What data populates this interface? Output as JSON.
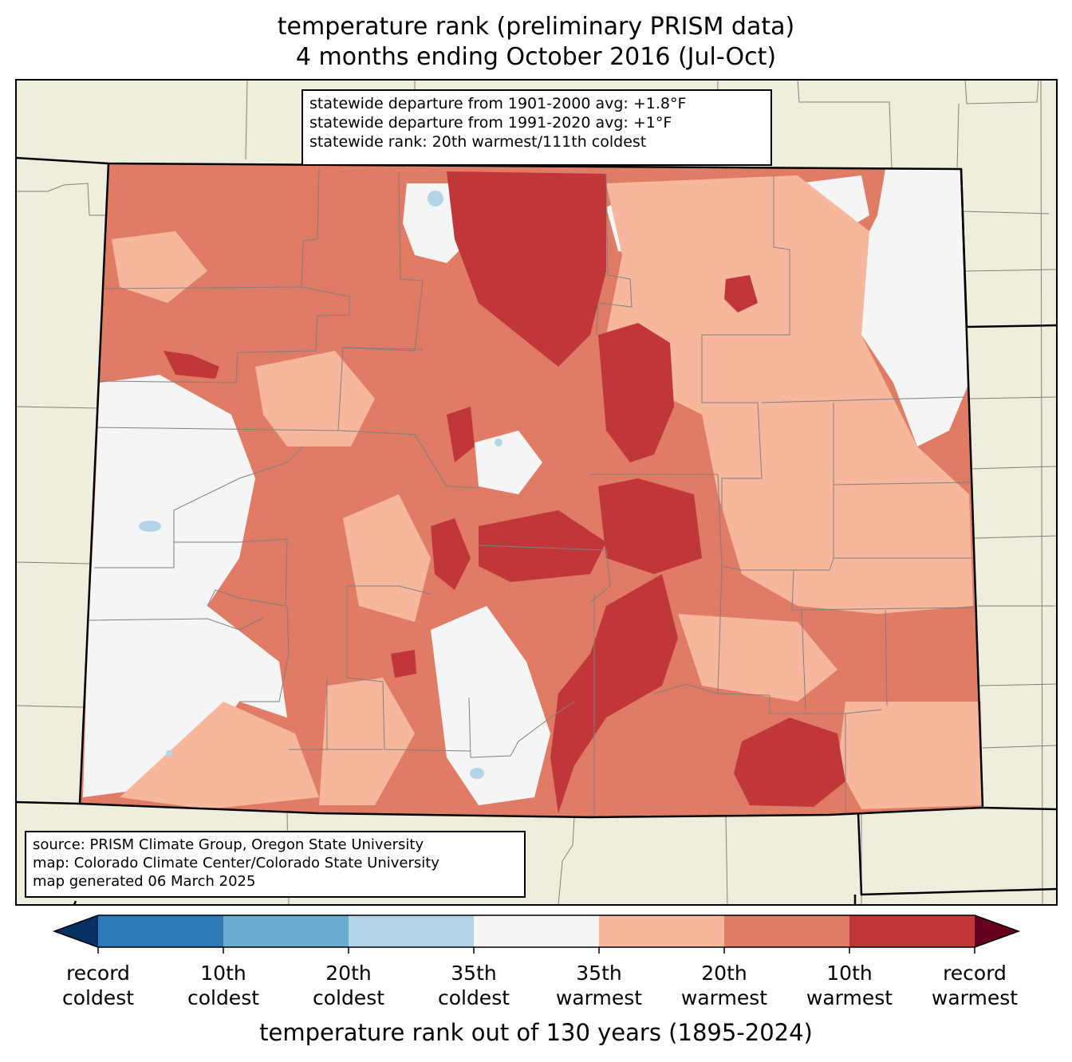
{
  "title": {
    "line1": "temperature rank (preliminary PRISM data)",
    "line2": "4 months ending October 2016 (Jul-Oct)"
  },
  "stats_box": {
    "line1": "statewide departure from 1901-2000 avg: +1.8°F",
    "line2": "statewide departure from 1991-2020 avg: +1°F",
    "line3": "statewide rank: 20th warmest/111th coldest"
  },
  "source_box": {
    "line1": "source: PRISM Climate Group, Oregon State University",
    "line2": "map: Colorado Climate Center/Colorado State University",
    "line3": "map generated 06 March 2025"
  },
  "colorbar": {
    "title": "temperature rank out of 130 years (1895-2024)",
    "bins": [
      {
        "color": "#053061"
      },
      {
        "color": "#2f79b5"
      },
      {
        "color": "#6aacd0"
      },
      {
        "color": "#b1d5e7"
      },
      {
        "color": "#f5f5f5"
      },
      {
        "color": "#f6b79c"
      },
      {
        "color": "#e07b65"
      },
      {
        "color": "#c13639"
      },
      {
        "color": "#67001f"
      }
    ],
    "ticks": [
      {
        "top": "record",
        "bottom": "coldest"
      },
      {
        "top": "10th",
        "bottom": "coldest"
      },
      {
        "top": "20th",
        "bottom": "coldest"
      },
      {
        "top": "35th",
        "bottom": "coldest"
      },
      {
        "top": "35th",
        "bottom": "warmest"
      },
      {
        "top": "20th",
        "bottom": "warmest"
      },
      {
        "top": "10th",
        "bottom": "warmest"
      },
      {
        "top": "record",
        "bottom": "warmest"
      }
    ]
  },
  "map": {
    "land_color": "#efeedc",
    "border_color": "#000000",
    "county_line_color": "#808080"
  }
}
